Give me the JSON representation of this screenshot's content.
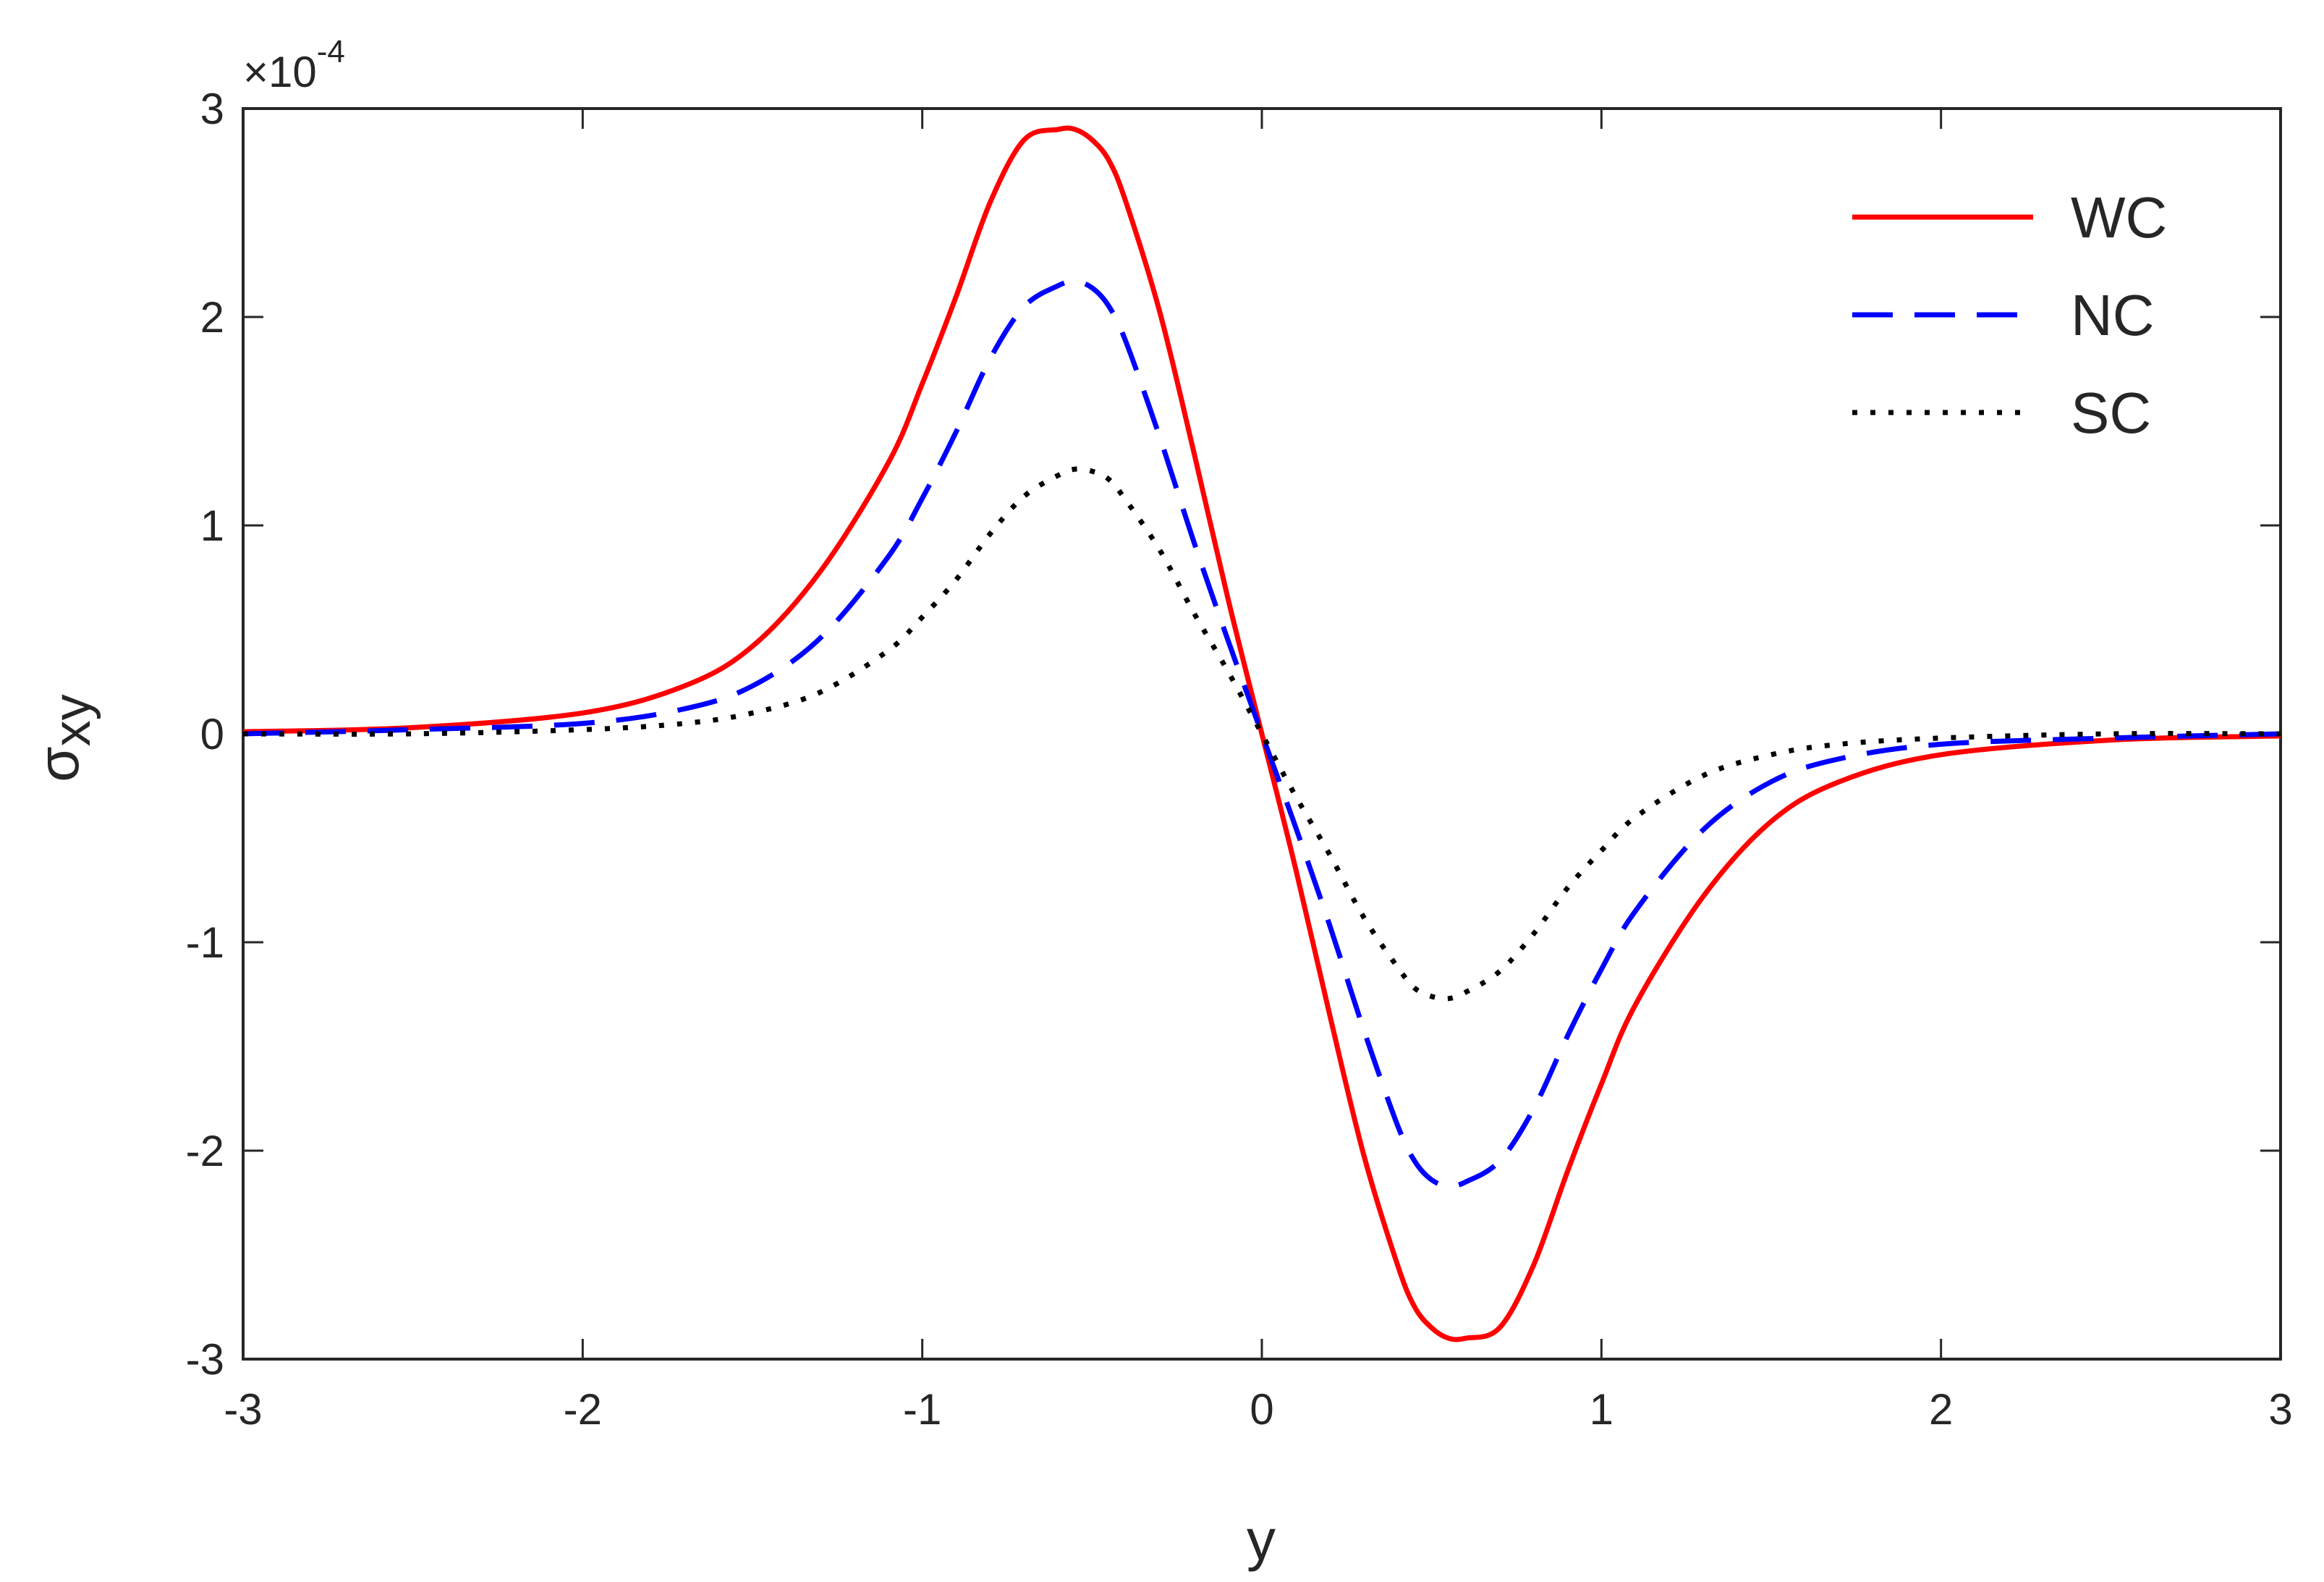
{
  "chart_data": {
    "type": "line",
    "xlabel": "y",
    "ylabel": {
      "symbol": "σ",
      "subscript": "xy"
    },
    "y_scale_label": {
      "base": "×10",
      "exponent": "-4"
    },
    "xlim": [
      -3,
      3
    ],
    "ylim": [
      -3,
      3
    ],
    "y_multiplier": 0.0001,
    "x_ticks": [
      -3,
      -2,
      -1,
      0,
      1,
      2,
      3
    ],
    "y_ticks": [
      -3,
      -2,
      -1,
      0,
      1,
      2,
      3
    ],
    "x_tick_labels": [
      "-3",
      "-2",
      "-1",
      "0",
      "1",
      "2",
      "3"
    ],
    "y_tick_labels": [
      "-3",
      "-2",
      "-1",
      "0",
      "1",
      "2",
      "3"
    ],
    "grid": false,
    "legend_position": "top-right",
    "x": [
      -3.0,
      -2.5,
      -2.0,
      -1.7,
      -1.5,
      -1.3,
      -1.1,
      -1.0,
      -0.9,
      -0.8,
      -0.7,
      -0.6,
      -0.55,
      -0.5,
      -0.45,
      -0.4,
      -0.3,
      -0.2,
      -0.1,
      0.0,
      0.1,
      0.2,
      0.3,
      0.4,
      0.45,
      0.5,
      0.55,
      0.6,
      0.7,
      0.8,
      0.9,
      1.0,
      1.1,
      1.3,
      1.5,
      1.7,
      2.0,
      2.5,
      3.0
    ],
    "series": [
      {
        "name": "WC",
        "color": "#ff0000",
        "style": "solid",
        "values": [
          0.01,
          0.03,
          0.1,
          0.23,
          0.42,
          0.78,
          1.3,
          1.68,
          2.1,
          2.55,
          2.85,
          2.9,
          2.9,
          2.85,
          2.75,
          2.55,
          2.02,
          1.35,
          0.65,
          0.0,
          -0.65,
          -1.35,
          -2.02,
          -2.55,
          -2.75,
          -2.85,
          -2.9,
          -2.9,
          -2.85,
          -2.55,
          -2.1,
          -1.68,
          -1.3,
          -0.78,
          -0.42,
          -0.23,
          -0.1,
          -0.03,
          -0.01
        ]
      },
      {
        "name": "NC",
        "color": "#0000ff",
        "style": "dashed",
        "values": [
          0.0,
          0.02,
          0.05,
          0.12,
          0.23,
          0.46,
          0.85,
          1.13,
          1.45,
          1.8,
          2.05,
          2.15,
          2.17,
          2.14,
          2.05,
          1.88,
          1.42,
          0.92,
          0.45,
          0.0,
          -0.45,
          -0.92,
          -1.42,
          -1.88,
          -2.05,
          -2.14,
          -2.17,
          -2.15,
          -2.05,
          -1.8,
          -1.45,
          -1.13,
          -0.85,
          -0.46,
          -0.23,
          -0.12,
          -0.05,
          -0.02,
          0.0
        ]
      },
      {
        "name": "SC",
        "color": "#000000",
        "style": "dotted",
        "values": [
          0.0,
          0.0,
          0.02,
          0.05,
          0.1,
          0.2,
          0.4,
          0.56,
          0.74,
          0.96,
          1.14,
          1.24,
          1.27,
          1.26,
          1.22,
          1.12,
          0.88,
          0.58,
          0.3,
          0.0,
          -0.3,
          -0.58,
          -0.88,
          -1.12,
          -1.22,
          -1.26,
          -1.27,
          -1.24,
          -1.14,
          -0.96,
          -0.74,
          -0.56,
          -0.4,
          -0.2,
          -0.1,
          -0.05,
          -0.02,
          0.0,
          0.0
        ]
      }
    ]
  }
}
